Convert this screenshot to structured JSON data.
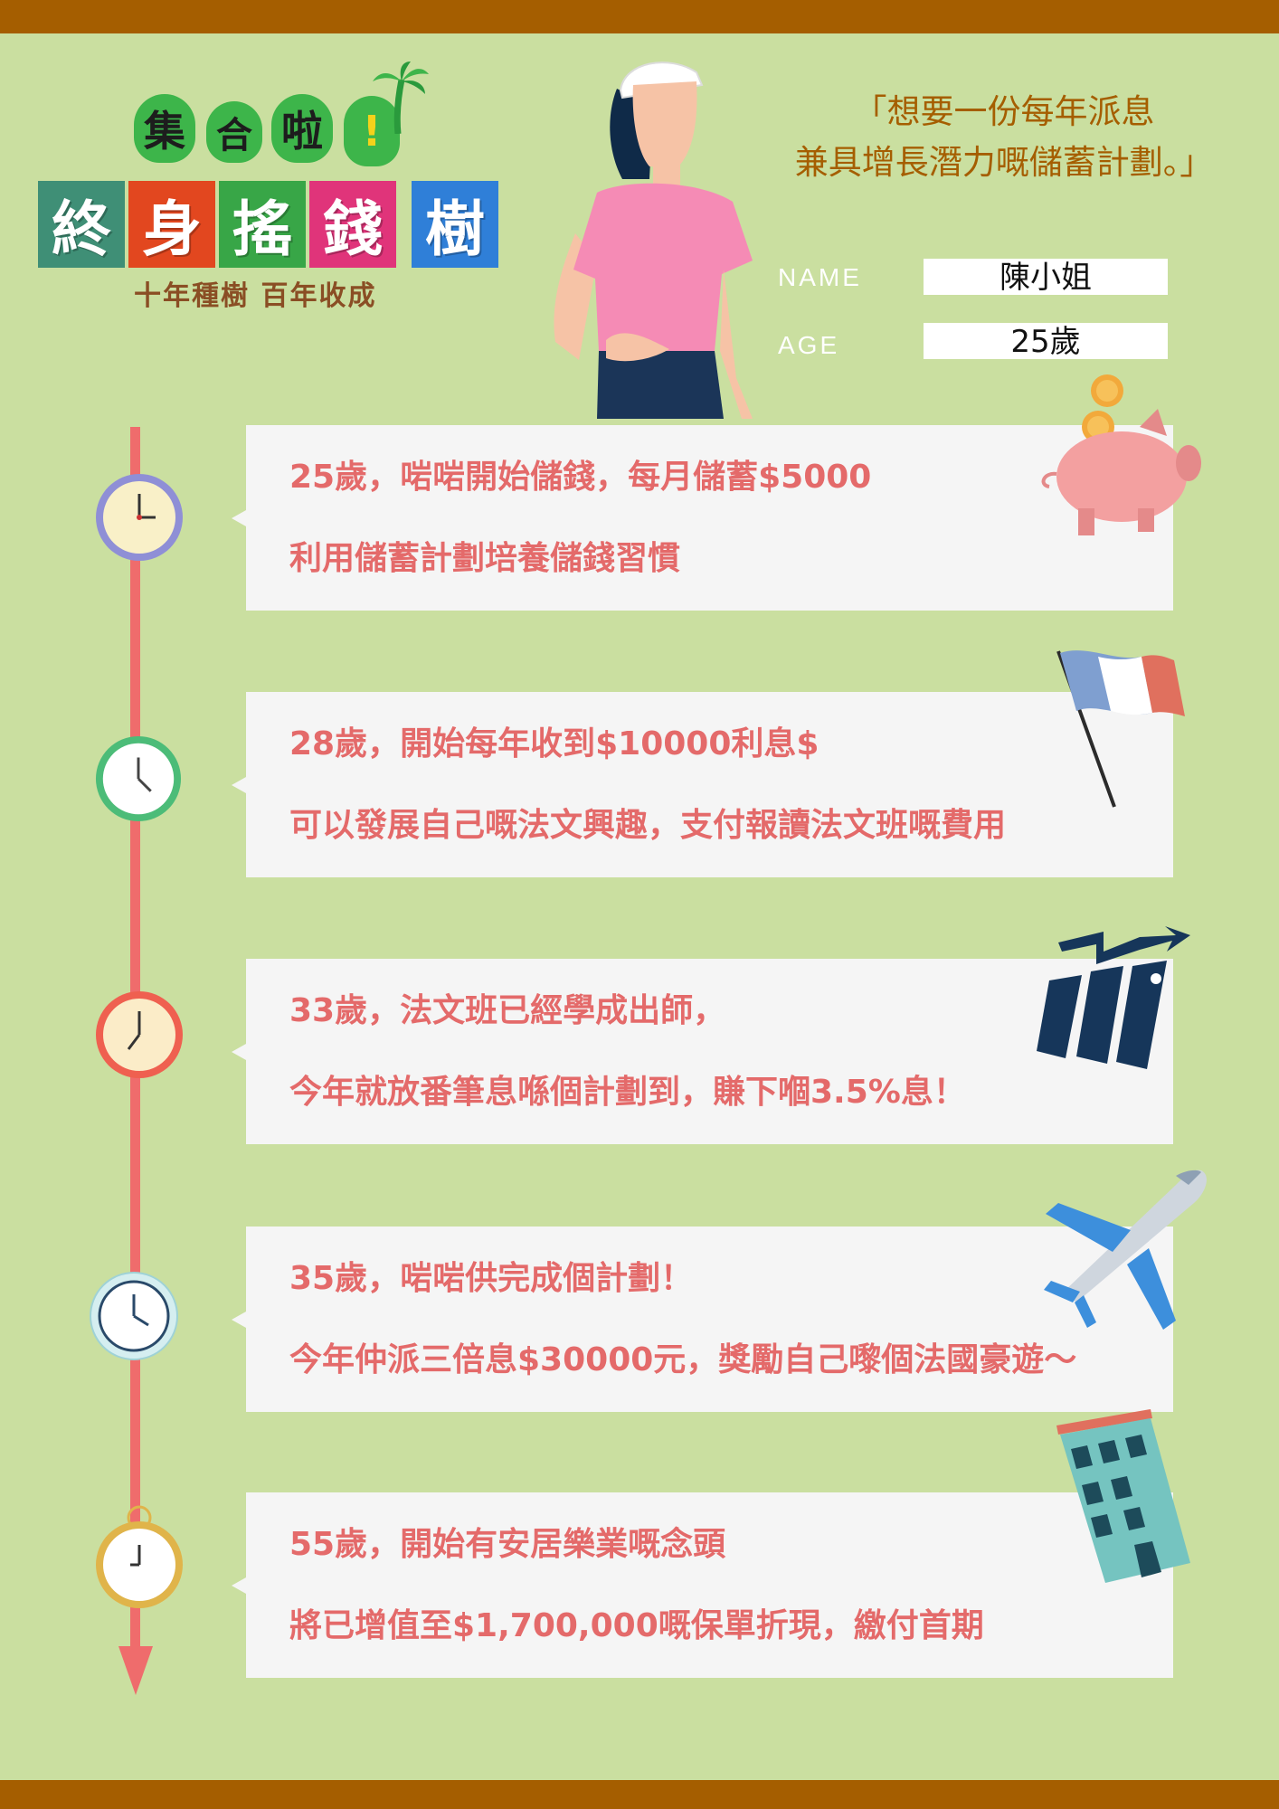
{
  "logo": {
    "top_chars": [
      "集",
      "合",
      "啦",
      "!"
    ],
    "main_chars": [
      "終",
      "身",
      "搖",
      "錢",
      "樹"
    ],
    "slogan": "十年種樹  百年收成"
  },
  "quote": {
    "line1": "「想要一份每年派息",
    "line2": "兼具增長潛力嘅儲蓄計劃。」"
  },
  "profile": {
    "name_label": "NAME",
    "name_value": "陳小姐",
    "age_label": "AGE",
    "age_value": "25歲"
  },
  "timeline": [
    {
      "line1": "25歲，啱啱開始儲錢，每月儲蓄$5000",
      "line2": "利用儲蓄計劃培養儲錢習慣",
      "icon": "piggy-bank-icon"
    },
    {
      "line1": "28歲，開始每年收到$10000利息$",
      "line2": "可以發展自己嘅法文興趣，支付報讀法文班嘅費用",
      "icon": "french-flag-icon"
    },
    {
      "line1": "33歲，法文班已經學成出師，",
      "line2": "今年就放番筆息喺個計劃到，賺下嗰3.5%息！",
      "icon": "growth-chart-icon"
    },
    {
      "line1": "35歲，啱啱供完成個計劃！",
      "line2": "今年仲派三倍息$30000元，獎勵自己嚟個法國豪遊～",
      "icon": "airplane-icon"
    },
    {
      "line1": "55歲，開始有安居樂業嘅念頭",
      "line2": "將已增值至$1,700,000嘅保單折現，繳付首期",
      "icon": "building-icon"
    }
  ],
  "colors": {
    "background": "#cadfa0",
    "bars": "#a55e00",
    "accent_text": "#e46a6a",
    "timeline": "#ef6c6c"
  }
}
